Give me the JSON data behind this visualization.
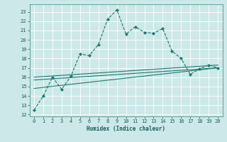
{
  "xlabel": "Humidex (Indice chaleur)",
  "bg_color": "#cde8e8",
  "grid_color": "#b0d8d8",
  "line_color": "#1a7a6e",
  "xlim": [
    -0.5,
    20.5
  ],
  "ylim": [
    11.8,
    23.8
  ],
  "yticks": [
    12,
    13,
    14,
    15,
    16,
    17,
    18,
    19,
    20,
    21,
    22,
    23
  ],
  "xticks": [
    0,
    1,
    2,
    3,
    4,
    5,
    6,
    7,
    8,
    9,
    10,
    11,
    12,
    13,
    14,
    15,
    16,
    17,
    18,
    19,
    20
  ],
  "series": [
    {
      "x": [
        0,
        1,
        2,
        3,
        4,
        5,
        6,
        7,
        8,
        9,
        10,
        11,
        12,
        13,
        14,
        15,
        16,
        17,
        18,
        19,
        20
      ],
      "y": [
        12.5,
        14.0,
        16.0,
        14.7,
        16.1,
        18.5,
        18.3,
        19.5,
        22.2,
        23.2,
        20.6,
        21.4,
        20.8,
        20.7,
        21.2,
        18.8,
        18.0,
        16.3,
        16.9,
        17.3,
        17.0
      ],
      "marker": true
    },
    {
      "x": [
        0,
        20
      ],
      "y": [
        16.0,
        17.3
      ],
      "marker": false
    },
    {
      "x": [
        0,
        20
      ],
      "y": [
        15.7,
        17.0
      ],
      "marker": false
    },
    {
      "x": [
        0,
        20
      ],
      "y": [
        14.8,
        17.0
      ],
      "marker": false
    }
  ]
}
